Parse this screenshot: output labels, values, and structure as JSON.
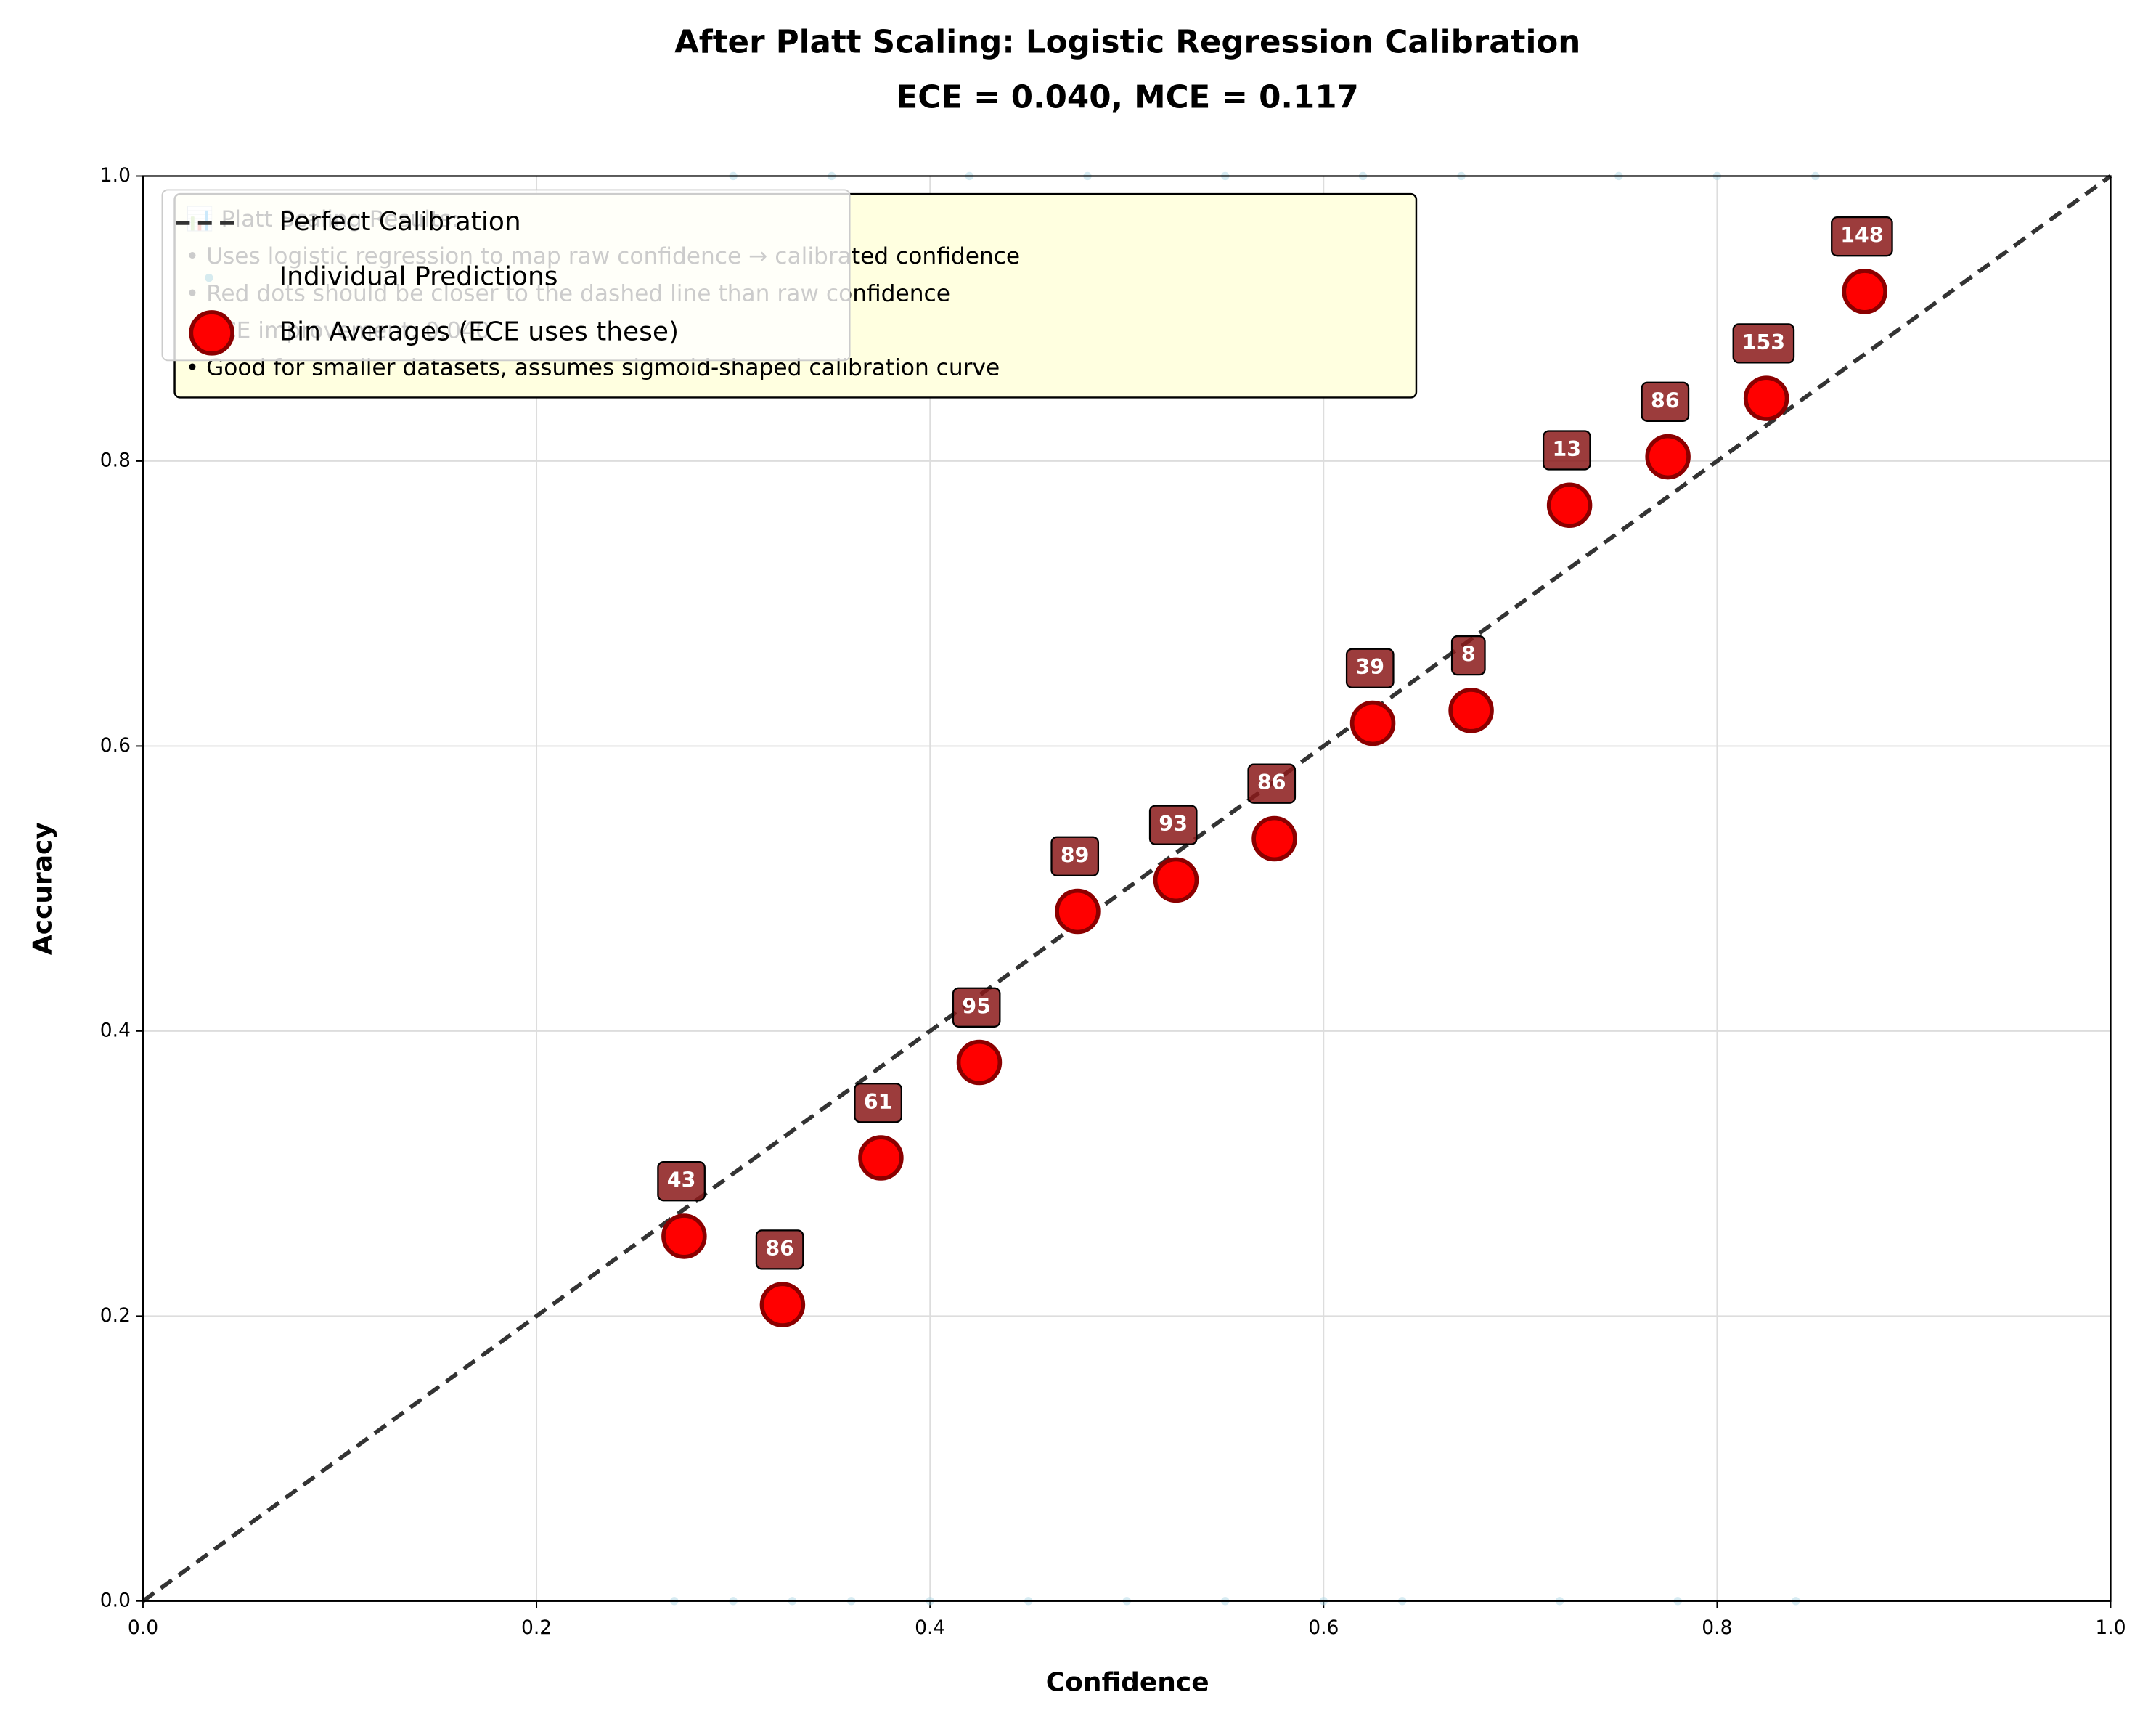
{
  "chart_data": {
    "type": "scatter",
    "title": "After Platt Scaling: Logistic Regression Calibration",
    "subtitle": "ECE = 0.040, MCE = 0.117",
    "x_label": "Confidence",
    "y_label": "Accuracy",
    "xlim": [
      0,
      1
    ],
    "ylim": [
      0,
      1
    ],
    "xticks": [
      {
        "value": 0,
        "label": "0.0"
      },
      0.2,
      0.4,
      0.6,
      0.8,
      {
        "value": 1,
        "label": "1.0"
      }
    ],
    "yticks": [
      {
        "value": 0,
        "label": "0.0"
      },
      0.2,
      0.4,
      0.6,
      0.8,
      {
        "value": 1,
        "label": "1.0"
      }
    ],
    "grid": true,
    "legend_loc": "upper left",
    "series": [
      {
        "name": "Perfect Calibration",
        "color": "#333333",
        "style": "dashed",
        "x": [
          0,
          1
        ],
        "values": [
          0,
          1
        ]
      },
      {
        "name": "Individual Predictions",
        "color": "#add8e6",
        "style": "points",
        "x": [
          0.27,
          0.3,
          0.33,
          0.36,
          0.4,
          0.45,
          0.5,
          0.55,
          0.6,
          0.64,
          0.72,
          0.78,
          0.84,
          0.3,
          0.35,
          0.42,
          0.48,
          0.55,
          0.62,
          0.67,
          0.75,
          0.8,
          0.85
        ],
        "values": [
          0,
          0,
          0,
          0,
          0,
          0,
          0,
          0,
          0,
          0,
          0,
          0,
          0,
          1,
          1,
          1,
          1,
          1,
          1,
          1,
          1,
          1,
          1
        ]
      },
      {
        "name": "Bin Averages (ECE uses these)",
        "color": "#ff0000",
        "style": "bins",
        "x": [
          0.275,
          0.325,
          0.375,
          0.425,
          0.475,
          0.525,
          0.575,
          0.625,
          0.675,
          0.725,
          0.775,
          0.825,
          0.875
        ],
        "values": [
          0.256,
          0.208,
          0.311,
          0.378,
          0.484,
          0.506,
          0.535,
          0.616,
          0.625,
          0.769,
          0.803,
          0.844,
          0.919
        ],
        "counts": [
          43,
          86,
          61,
          95,
          89,
          93,
          86,
          39,
          8,
          13,
          86,
          153,
          148
        ]
      }
    ],
    "annotation": [
      "📊 Platt Scaling Results:",
      "• Uses logistic regression to map raw confidence → calibrated confidence",
      "• Red dots should be closer to the dashed line than raw confidence",
      "• ECE improvement: 0.040",
      "• Good for smaller datasets, assumes sigmoid-shaped calibration curve"
    ]
  }
}
